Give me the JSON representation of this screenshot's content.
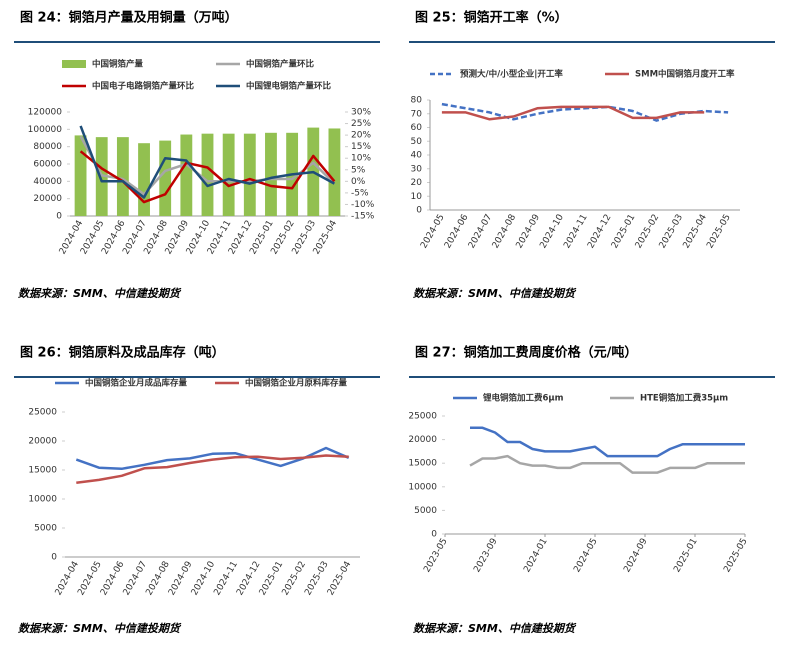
{
  "chart_data": [
    {
      "type": "bar",
      "title": "图 24：铜箔月产量及用铜量（万吨）",
      "source": "数据来源：SMM、中信建投期货",
      "categories": [
        "2024-04",
        "2024-05",
        "2024-06",
        "2024-07",
        "2024-08",
        "2024-09",
        "2024-10",
        "2024-11",
        "2024-12",
        "2025-01",
        "2025-02",
        "2025-03",
        "2025-04"
      ],
      "ylim": [
        0,
        120000
      ],
      "yticks": [
        0,
        20000,
        40000,
        60000,
        80000,
        100000,
        120000
      ],
      "y2lim": [
        -15,
        30
      ],
      "y2ticks": [
        {
          "value": -15,
          "label": "-15%"
        },
        {
          "value": -10,
          "label": "-10%"
        },
        {
          "value": -5,
          "label": "-5%"
        },
        {
          "value": 0,
          "label": "0%"
        },
        {
          "value": 5,
          "label": "5%"
        },
        {
          "value": 10,
          "label": "10%"
        },
        {
          "value": 15,
          "label": "15%"
        },
        {
          "value": 20,
          "label": "20%"
        },
        {
          "value": 25,
          "label": "25%"
        },
        {
          "value": 30,
          "label": "30%"
        }
      ],
      "series": [
        {
          "name": "中国铜箔产量",
          "type": "bar",
          "color": "#92c050",
          "values": [
            93000,
            91000,
            91000,
            84000,
            87000,
            94000,
            95000,
            95000,
            95000,
            96000,
            96000,
            102000,
            101000
          ]
        },
        {
          "name": "中国铜箔产量环比",
          "type": "line",
          "axis": "y2",
          "color": "#a6a6a6",
          "values": [
            19.5,
            2.6,
            1,
            -5.6,
            4.5,
            7.5,
            0,
            0,
            0,
            1,
            1,
            8,
            -1
          ]
        },
        {
          "name": "中国电子电路铜箔产量环比",
          "type": "line",
          "axis": "y2",
          "color": "#c00000",
          "values": [
            13,
            5.6,
            0,
            -9,
            -5.6,
            8,
            6,
            -2,
            1,
            -2,
            -3,
            11,
            0
          ]
        },
        {
          "name": "中国锂电铜箔产量环比",
          "type": "line",
          "axis": "y2",
          "color": "#1f4e79",
          "values": [
            24,
            0,
            0,
            -7,
            10,
            9,
            -2,
            1,
            -1,
            1.5,
            3,
            4,
            -1
          ]
        }
      ]
    },
    {
      "type": "line",
      "title": "图 25：铜箔开工率（%）",
      "source": "数据来源：SMM、中信建投期货",
      "categories": [
        "2024-05",
        "2024-06",
        "2024-07",
        "2024-08",
        "2024-09",
        "2024-10",
        "2024-11",
        "2024-12",
        "2025-01",
        "2025-02",
        "2025-03",
        "2025-04",
        "2025-05"
      ],
      "ylim": [
        0,
        80
      ],
      "yticks": [
        0,
        10,
        20,
        30,
        40,
        50,
        60,
        70,
        80
      ],
      "series": [
        {
          "name": "预测大/中/小型企业|开工率",
          "type": "line",
          "dashed": true,
          "color": "#4472c4",
          "values": [
            77,
            74,
            71,
            66,
            70,
            73,
            74,
            75,
            72,
            65,
            70,
            72,
            71
          ]
        },
        {
          "name": "SMM中国铜箔月度开工率",
          "type": "line",
          "color": "#c0504d",
          "values": [
            71,
            71,
            66,
            68,
            74,
            75,
            75,
            75,
            67,
            67,
            71,
            71,
            null
          ]
        }
      ]
    },
    {
      "type": "line",
      "title": "图 26：铜箔原料及成品库存（吨）",
      "source": "数据来源：SMM、中信建投期货",
      "categories": [
        "2024-04",
        "2024-05",
        "2024-06",
        "2024-07",
        "2024-08",
        "2024-09",
        "2024-10",
        "2024-11",
        "2024-12",
        "2025-01",
        "2025-02",
        "2025-03",
        "2025-04"
      ],
      "ylim": [
        0,
        25000
      ],
      "yticks": [
        0,
        5000,
        10000,
        15000,
        20000,
        25000
      ],
      "series": [
        {
          "name": "中国铜箔企业月成品库存量",
          "type": "line",
          "color": "#4472c4",
          "values": [
            16800,
            15400,
            15200,
            15900,
            16700,
            17000,
            17800,
            17900,
            16800,
            15700,
            17000,
            18800,
            17100
          ]
        },
        {
          "name": "中国铜箔企业月原料库存量",
          "type": "line",
          "color": "#c0504d",
          "values": [
            12800,
            13300,
            14000,
            15300,
            15500,
            16200,
            16800,
            17200,
            17300,
            16900,
            17100,
            17500,
            17300
          ]
        }
      ]
    },
    {
      "type": "line",
      "title": "图 27：铜箔加工费周度价格（元/吨）",
      "source": "数据来源：SMM、中信建投期货",
      "x": [
        "2023-07",
        "2023-08",
        "2023-09",
        "2023-10",
        "2023-11",
        "2023-12",
        "2024-01",
        "2024-02",
        "2024-03",
        "2024-04",
        "2024-05",
        "2024-06",
        "2024-07",
        "2024-08",
        "2024-09",
        "2024-10",
        "2024-11",
        "2024-12",
        "2025-01",
        "2025-02",
        "2025-03",
        "2025-04",
        "2025-05"
      ],
      "xlim": [
        "2023-05",
        "2025-05"
      ],
      "xticks": [
        "2023-05",
        "2023-09",
        "2024-01",
        "2024-05",
        "2024-09",
        "2025-01",
        "2025-05"
      ],
      "ylim": [
        0,
        25000
      ],
      "yticks": [
        0,
        5000,
        10000,
        15000,
        20000,
        25000
      ],
      "series": [
        {
          "name": "锂电铜箔加工费6μm",
          "type": "line",
          "color": "#4472c4",
          "values": [
            22500,
            22500,
            21500,
            19500,
            19500,
            18000,
            17500,
            17500,
            17500,
            18000,
            18500,
            16500,
            16500,
            16500,
            16500,
            16500,
            18000,
            19000,
            19000,
            19000,
            19000,
            19000,
            19000
          ]
        },
        {
          "name": "HTE铜箔加工费35μm",
          "type": "line",
          "color": "#a6a6a6",
          "values": [
            14500,
            16000,
            16000,
            16500,
            15000,
            14500,
            14500,
            14000,
            14000,
            15000,
            15000,
            15000,
            15000,
            13000,
            13000,
            13000,
            14000,
            14000,
            14000,
            15000,
            15000,
            15000,
            15000
          ]
        }
      ]
    }
  ]
}
